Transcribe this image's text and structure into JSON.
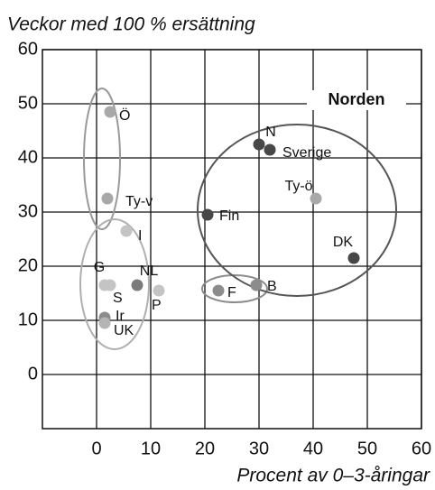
{
  "chart_data": {
    "type": "scatter",
    "title": "Veckor med 100 % ersättning",
    "x_label": "Procent av 0–3-åringar",
    "annotation": "Norden",
    "xlim": [
      -10,
      60
    ],
    "ylim": [
      -10,
      60
    ],
    "xticks": [
      0,
      10,
      20,
      30,
      40,
      50,
      60
    ],
    "yticks": [
      0,
      10,
      20,
      30,
      40,
      50,
      60
    ],
    "grid": true,
    "points": [
      {
        "label": "Ö",
        "x": 2.5,
        "y": 48.5,
        "color": "#a8a8a8"
      },
      {
        "label": "Ty-v",
        "x": 2,
        "y": 32.5,
        "color": "#a8a8a8"
      },
      {
        "label": "I",
        "x": 5.5,
        "y": 26.5,
        "color": "#c4c4c4"
      },
      {
        "label": "G",
        "x": 1.5,
        "y": 16.5,
        "color": "#c4c4c4"
      },
      {
        "label": "S",
        "x": 2.5,
        "y": 16.5,
        "color": "#c4c4c4"
      },
      {
        "label": "NL",
        "x": 7.5,
        "y": 16.5,
        "color": "#7a7a7a"
      },
      {
        "label": "P",
        "x": 11.5,
        "y": 15.5,
        "color": "#c4c4c4"
      },
      {
        "label": "Ir",
        "x": 1.5,
        "y": 10.5,
        "color": "#8c8c8c"
      },
      {
        "label": "UK",
        "x": 1.5,
        "y": 9.5,
        "color": "#b4b4b4"
      },
      {
        "label": "Fin",
        "x": 20.5,
        "y": 29.5,
        "color": "#474747"
      },
      {
        "label": "F",
        "x": 22.5,
        "y": 15.5,
        "color": "#8c8c8c"
      },
      {
        "label": "B",
        "x": 29.5,
        "y": 16.5,
        "color": "#8c8c8c"
      },
      {
        "label": "N",
        "x": 30,
        "y": 42.5,
        "color": "#474747"
      },
      {
        "label": "Sverige",
        "x": 32,
        "y": 41.5,
        "color": "#474747"
      },
      {
        "label": "Ty-ö",
        "x": 40.5,
        "y": 32.5,
        "color": "#a8a8a8"
      },
      {
        "label": "DK",
        "x": 47.5,
        "y": 21.5,
        "color": "#474747"
      }
    ]
  }
}
